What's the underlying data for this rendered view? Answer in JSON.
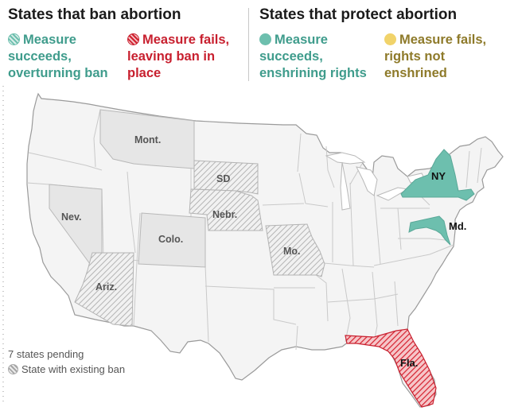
{
  "legend": {
    "left_title": "States that ban abortion",
    "right_title": "States that protect abortion",
    "items": [
      {
        "label": "Measure succeeds, overturning ban",
        "color": "#6dbfae",
        "style": "hatched"
      },
      {
        "label": "Measure fails, leaving ban in place",
        "color": "#c8202f",
        "style": "hatched"
      },
      {
        "label": "Measure succeeds, enshrining rights",
        "color": "#6dbfae",
        "style": "solid"
      },
      {
        "label": "Measure fails, rights not enshrined",
        "color": "#f1d36a",
        "style": "solid"
      }
    ]
  },
  "notes": {
    "pending": "7 states pending",
    "existing_ban": "State with existing ban"
  },
  "states": {
    "montana": {
      "label": "Mont.",
      "status": "pending"
    },
    "south_dakota": {
      "label": "SD",
      "status": "pending-existing-ban"
    },
    "nebraska": {
      "label": "Nebr.",
      "status": "pending-existing-ban"
    },
    "nevada": {
      "label": "Nev.",
      "status": "pending"
    },
    "colorado": {
      "label": "Colo.",
      "status": "pending"
    },
    "missouri": {
      "label": "Mo.",
      "status": "pending-existing-ban"
    },
    "arizona": {
      "label": "Ariz.",
      "status": "pending-existing-ban"
    },
    "new_york": {
      "label": "NY",
      "status": "succeeds-enshrining"
    },
    "maryland": {
      "label": "Md.",
      "status": "succeeds-enshrining"
    },
    "florida": {
      "label": "Fla.",
      "status": "fails-leaving-ban"
    }
  }
}
